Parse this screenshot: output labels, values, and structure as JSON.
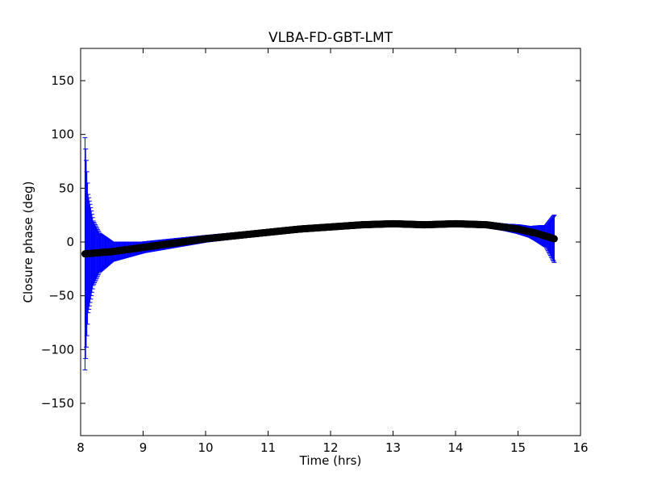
{
  "chart_data": {
    "type": "scatter",
    "title": "VLBA-FD-GBT-LMT",
    "xlabel": "Time (hrs)",
    "ylabel": "Closure phase (deg)",
    "xlim": [
      8,
      16
    ],
    "ylim": [
      -180,
      180
    ],
    "xticks": [
      8,
      9,
      10,
      11,
      12,
      13,
      14,
      15,
      16
    ],
    "yticks": [
      -150,
      -100,
      -50,
      0,
      50,
      100,
      150
    ],
    "xtick_labels": [
      "8",
      "9",
      "10",
      "11",
      "12",
      "13",
      "14",
      "15",
      "16"
    ],
    "ytick_labels": [
      "−150",
      "−100",
      "−50",
      "0",
      "50",
      "100",
      "150"
    ],
    "grid": false,
    "series": [
      {
        "marker_color": "#000000",
        "errorbar_color": "#0000ff",
        "start_x": 8.07,
        "end_x": 15.58,
        "trend": [
          {
            "x": 8.07,
            "y": -11
          },
          {
            "x": 8.5,
            "y": -9
          },
          {
            "x": 9.0,
            "y": -5
          },
          {
            "x": 9.5,
            "y": -1
          },
          {
            "x": 10.0,
            "y": 3
          },
          {
            "x": 10.5,
            "y": 6
          },
          {
            "x": 11.0,
            "y": 9
          },
          {
            "x": 11.5,
            "y": 12
          },
          {
            "x": 12.0,
            "y": 14
          },
          {
            "x": 12.5,
            "y": 16
          },
          {
            "x": 13.0,
            "y": 17
          },
          {
            "x": 13.5,
            "y": 16
          },
          {
            "x": 14.0,
            "y": 17
          },
          {
            "x": 14.5,
            "y": 16
          },
          {
            "x": 15.0,
            "y": 12
          },
          {
            "x": 15.3,
            "y": 8
          },
          {
            "x": 15.58,
            "y": 3
          }
        ],
        "error_envelope": [
          {
            "x": 8.07,
            "err": 108
          },
          {
            "x": 8.12,
            "err": 55
          },
          {
            "x": 8.2,
            "err": 30
          },
          {
            "x": 8.3,
            "err": 18
          },
          {
            "x": 8.5,
            "err": 9
          },
          {
            "x": 9.0,
            "err": 5
          },
          {
            "x": 10.0,
            "err": 3
          },
          {
            "x": 12.0,
            "err": 2
          },
          {
            "x": 14.0,
            "err": 2
          },
          {
            "x": 14.8,
            "err": 3
          },
          {
            "x": 15.2,
            "err": 5
          },
          {
            "x": 15.45,
            "err": 10
          },
          {
            "x": 15.58,
            "err": 22
          }
        ]
      }
    ]
  }
}
